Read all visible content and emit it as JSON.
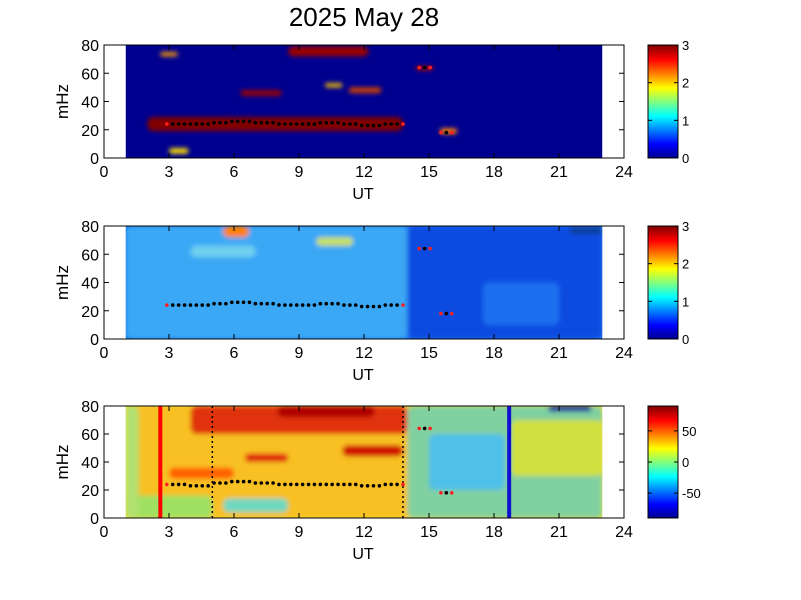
{
  "chart_data": {
    "title": "2025 May 28",
    "panels": [
      {
        "type": "heatmap",
        "xlabel": "UT",
        "ylabel": "mHz",
        "xlim": [
          0,
          24
        ],
        "ylim": [
          0,
          80
        ],
        "xticks": [
          "0",
          "3",
          "6",
          "9",
          "12",
          "15",
          "18",
          "21",
          "24"
        ],
        "yticks": [
          "0",
          "20",
          "40",
          "60",
          "80"
        ],
        "data_extent_ut": [
          1.0,
          23.0
        ],
        "background": "#00008f",
        "colorbar": {
          "min": 0,
          "max": 3,
          "ticks": [
            "0",
            "1",
            "2",
            "3"
          ]
        },
        "blobs": [
          {
            "ut": [
              2.6,
              3.4
            ],
            "mhz": [
              72,
              75
            ],
            "color": "#ffa000"
          },
          {
            "ut": [
              8.5,
              12.2
            ],
            "mhz": [
              72,
              79
            ],
            "color": "#9a0000"
          },
          {
            "ut": [
              14.4,
              15.2
            ],
            "mhz": [
              62,
              65
            ],
            "color": "#b00000"
          },
          {
            "ut": [
              10.2,
              11.0
            ],
            "mhz": [
              50,
              53
            ],
            "color": "#f0c000"
          },
          {
            "ut": [
              11.3,
              12.8
            ],
            "mhz": [
              46,
              50
            ],
            "color": "#d04000"
          },
          {
            "ut": [
              6.3,
              8.2
            ],
            "mhz": [
              44,
              48
            ],
            "color": "#9a0000"
          },
          {
            "ut": [
              2.0,
              13.8
            ],
            "mhz": [
              19,
              29
            ],
            "color": "#800000"
          },
          {
            "ut": [
              15.5,
              16.3
            ],
            "mhz": [
              17,
              21
            ],
            "color": "#ff8000"
          },
          {
            "ut": [
              3.0,
              3.9
            ],
            "mhz": [
              3,
              7
            ],
            "color": "#ffe000"
          }
        ],
        "markers": {
          "main": {
            "ut_start": 2.9,
            "ut_end": 13.8,
            "mhz": [
              24,
              24,
              25,
              26,
              25,
              24,
              24,
              25,
              24,
              23,
              24,
              24
            ]
          },
          "extra": [
            {
              "ut": 14.8,
              "mhz": 64
            },
            {
              "ut": 15.8,
              "mhz": 18
            }
          ]
        }
      },
      {
        "type": "heatmap",
        "xlabel": "UT",
        "ylabel": "mHz",
        "xlim": [
          0,
          24
        ],
        "ylim": [
          0,
          80
        ],
        "xticks": [
          "0",
          "3",
          "6",
          "9",
          "12",
          "15",
          "18",
          "21",
          "24"
        ],
        "yticks": [
          "0",
          "20",
          "40",
          "60",
          "80"
        ],
        "data_extent_ut": [
          1.0,
          23.0
        ],
        "background": "#1a7cf0",
        "colorbar": {
          "min": 0,
          "max": 3,
          "ticks": [
            "0",
            "1",
            "2",
            "3"
          ]
        },
        "blobs": [
          {
            "ut": [
              1.0,
              14.0
            ],
            "mhz": [
              0,
              80
            ],
            "color": "#3aa8f5"
          },
          {
            "ut": [
              5.5,
              6.7
            ],
            "mhz": [
              72,
              80
            ],
            "color": "#ff8000"
          },
          {
            "ut": [
              9.8,
              11.5
            ],
            "mhz": [
              66,
              72
            ],
            "color": "#c8e060"
          },
          {
            "ut": [
              4.0,
              7.0
            ],
            "mhz": [
              58,
              66
            ],
            "color": "#70d0f0"
          },
          {
            "ut": [
              14.0,
              23.0
            ],
            "mhz": [
              0,
              80
            ],
            "color": "#0c4ce0"
          },
          {
            "ut": [
              17.5,
              21.0
            ],
            "mhz": [
              10,
              40
            ],
            "color": "#1a70f0"
          },
          {
            "ut": [
              21.5,
              23.0
            ],
            "mhz": [
              74,
              80
            ],
            "color": "#1040a0"
          }
        ],
        "markers": {
          "main": {
            "ut_start": 2.9,
            "ut_end": 13.8,
            "mhz": [
              24,
              24,
              25,
              26,
              25,
              24,
              24,
              25,
              24,
              23,
              24,
              24
            ]
          },
          "extra": [
            {
              "ut": 14.8,
              "mhz": 64
            },
            {
              "ut": 15.8,
              "mhz": 18
            }
          ]
        }
      },
      {
        "type": "heatmap",
        "xlabel": "UT",
        "ylabel": "mHz",
        "xlim": [
          0,
          24
        ],
        "ylim": [
          0,
          80
        ],
        "xticks": [
          "0",
          "3",
          "6",
          "9",
          "12",
          "15",
          "18",
          "21",
          "24"
        ],
        "yticks": [
          "0",
          "20",
          "40",
          "60",
          "80"
        ],
        "data_extent_ut": [
          1.0,
          23.0
        ],
        "background": "#f0e040",
        "colorbar": {
          "min": -90,
          "max": 90,
          "ticks": [
            "50",
            "0",
            "-50"
          ],
          "tick_values": [
            50,
            0,
            -50
          ]
        },
        "blobs": [
          {
            "ut": [
              1.0,
              14.2
            ],
            "mhz": [
              0,
              80
            ],
            "color": "#f8c020"
          },
          {
            "ut": [
              4.0,
              14.0
            ],
            "mhz": [
              60,
              80
            ],
            "color": "#e03010"
          },
          {
            "ut": [
              8.0,
              12.5
            ],
            "mhz": [
              72,
              80
            ],
            "color": "#b00000"
          },
          {
            "ut": [
              6.5,
              8.5
            ],
            "mhz": [
              40,
              46
            ],
            "color": "#e02010"
          },
          {
            "ut": [
              11.0,
              13.8
            ],
            "mhz": [
              44,
              52
            ],
            "color": "#d01000"
          },
          {
            "ut": [
              3.0,
              6.0
            ],
            "mhz": [
              28,
              36
            ],
            "color": "#ff6000"
          },
          {
            "ut": [
              1.0,
              5.0
            ],
            "mhz": [
              0,
              16
            ],
            "color": "#a0e060"
          },
          {
            "ut": [
              5.5,
              8.5
            ],
            "mhz": [
              4,
              14
            ],
            "color": "#70d8c0"
          },
          {
            "ut": [
              14.0,
              23.0
            ],
            "mhz": [
              0,
              80
            ],
            "color": "#80d0a0"
          },
          {
            "ut": [
              15.0,
              18.5
            ],
            "mhz": [
              20,
              60
            ],
            "color": "#50c0e8"
          },
          {
            "ut": [
              18.8,
              23.0
            ],
            "mhz": [
              30,
              70
            ],
            "color": "#d0e040"
          },
          {
            "ut": [
              20.5,
              22.5
            ],
            "mhz": [
              76,
              80
            ],
            "color": "#0020a0"
          },
          {
            "ut": [
              1.0,
              1.6
            ],
            "mhz": [
              0,
              80
            ],
            "color": "#b0e070"
          }
        ],
        "vlines": [
          {
            "ut": 2.6,
            "color": "#ff0000",
            "style": "solid"
          },
          {
            "ut": 18.7,
            "color": "#1010d0",
            "style": "solid"
          },
          {
            "ut": 5.0,
            "color": "#000000",
            "style": "dotted"
          },
          {
            "ut": 13.8,
            "color": "#000000",
            "style": "dotted"
          }
        ],
        "markers": {
          "main": {
            "ut_start": 2.9,
            "ut_end": 13.8,
            "mhz": [
              24,
              23,
              25,
              26,
              25,
              24,
              24,
              24,
              24,
              23,
              24,
              24
            ]
          },
          "extra": [
            {
              "ut": 14.8,
              "mhz": 64
            },
            {
              "ut": 15.8,
              "mhz": 18
            }
          ]
        }
      }
    ]
  }
}
